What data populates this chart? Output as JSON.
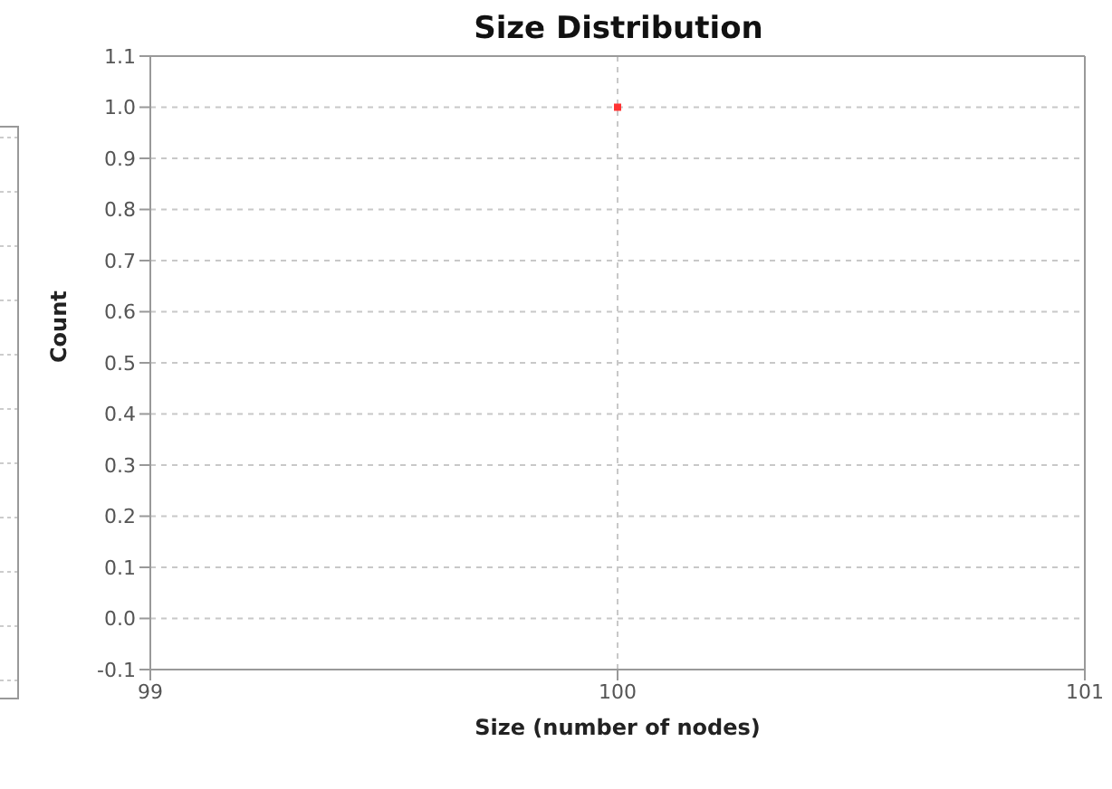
{
  "chart_data": {
    "type": "scatter",
    "title": "Size Distribution",
    "xlabel": "Size (number of nodes)",
    "ylabel": "Count",
    "x": [
      100
    ],
    "series": [
      {
        "color": "#ff3333",
        "values": [
          1.0
        ]
      }
    ],
    "xlim": [
      99,
      101
    ],
    "xticks": [
      99,
      100,
      101
    ],
    "ylim": [
      -0.1,
      1.1
    ],
    "yticks": [
      -0.1,
      {
        "value": 0,
        "label": "0.0"
      },
      0.1,
      0.2,
      0.3,
      0.4,
      0.5,
      0.6,
      0.7,
      0.8,
      0.9,
      {
        "value": 1,
        "label": "1.0"
      },
      1.1
    ],
    "grid": true,
    "marker": "square",
    "legend": false
  }
}
